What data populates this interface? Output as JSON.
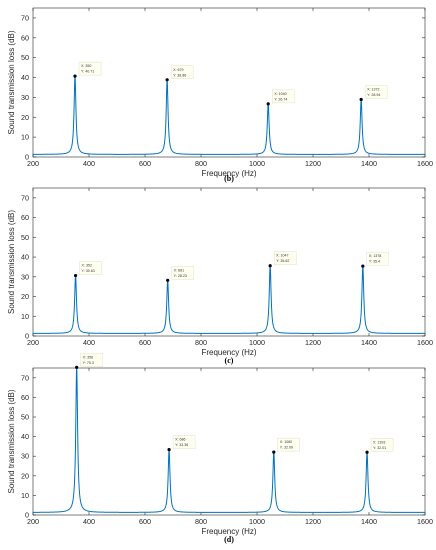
{
  "chart_data": [
    {
      "type": "line",
      "caption": "(b)",
      "xlabel": "Frequency (Hz)",
      "ylabel": "Sound transmission loss (dB)",
      "xlim": [
        200,
        1600
      ],
      "ylim": [
        0,
        75
      ],
      "xticks": [
        200,
        400,
        600,
        800,
        1000,
        1200,
        1400,
        1600
      ],
      "yticks": [
        0,
        10,
        20,
        30,
        40,
        50,
        60,
        70
      ],
      "grid": false,
      "color": "#0072BD",
      "peaks": [
        {
          "x": 350,
          "y": 40.71,
          "label_x": "X: 350",
          "label_y": "Y: 40.71"
        },
        {
          "x": 679,
          "y": 38.86,
          "label_x": "X: 679",
          "label_y": "Y: 38.86"
        },
        {
          "x": 1040,
          "y": 26.74,
          "label_x": "X: 1040",
          "label_y": "Y: 26.74"
        },
        {
          "x": 1372,
          "y": 28.94,
          "label_x": "X: 1372",
          "label_y": "Y: 28.94"
        }
      ]
    },
    {
      "type": "line",
      "caption": "(c)",
      "xlabel": "Frequency (Hz)",
      "ylabel": "Sound transmission loss (dB)",
      "xlim": [
        200,
        1600
      ],
      "ylim": [
        0,
        75
      ],
      "xticks": [
        200,
        400,
        600,
        800,
        1000,
        1200,
        1400,
        1600
      ],
      "yticks": [
        0,
        10,
        20,
        30,
        40,
        50,
        60,
        70
      ],
      "grid": false,
      "color": "#0072BD",
      "peaks": [
        {
          "x": 352,
          "y": 30.63,
          "label_x": "X: 352",
          "label_y": "Y: 30.63"
        },
        {
          "x": 681,
          "y": 28.23,
          "label_x": "X: 681",
          "label_y": "Y: 28.23"
        },
        {
          "x": 1047,
          "y": 35.62,
          "label_x": "X: 1047",
          "label_y": "Y: 35.62"
        },
        {
          "x": 1378,
          "y": 35.4,
          "label_x": "X: 1378",
          "label_y": "Y: 35.4"
        }
      ]
    },
    {
      "type": "line",
      "caption": "(d)",
      "xlabel": "Frequency (Hz)",
      "ylabel": "Sound transmission loss (dB)",
      "xlim": [
        200,
        1600
      ],
      "ylim": [
        0,
        75
      ],
      "xticks": [
        200,
        400,
        600,
        800,
        1000,
        1200,
        1400,
        1600
      ],
      "yticks": [
        0,
        10,
        20,
        30,
        40,
        50,
        60,
        70
      ],
      "grid": false,
      "color": "#0072BD",
      "peaks": [
        {
          "x": 356,
          "y": 75.3,
          "label_x": "X: 356",
          "label_y": "Y: 75.3"
        },
        {
          "x": 686,
          "y": 33.36,
          "label_x": "X: 686",
          "label_y": "Y: 33.36"
        },
        {
          "x": 1060,
          "y": 32.09,
          "label_x": "X: 1060",
          "label_y": "Y: 32.09"
        },
        {
          "x": 1393,
          "y": 32.01,
          "label_x": "X: 1393",
          "label_y": "Y: 32.01"
        }
      ]
    }
  ]
}
